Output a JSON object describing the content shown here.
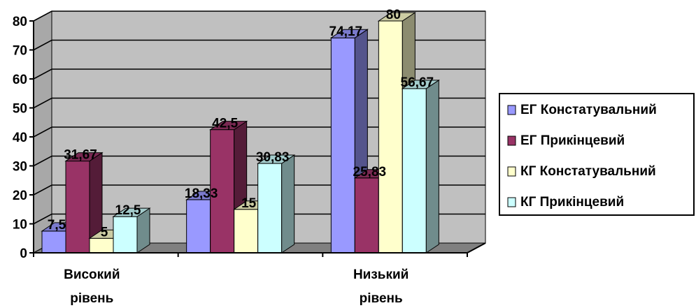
{
  "chart_data": {
    "type": "bar",
    "categories": [
      "Високий рівень",
      "",
      "Низький рівень"
    ],
    "category_lines": [
      [
        "Високий",
        "рівень"
      ],
      [],
      [
        "Низький",
        "рівень"
      ]
    ],
    "series": [
      {
        "name": "ЕГ Констатувальний",
        "values": [
          7.5,
          18.33,
          74.17
        ],
        "labels": [
          "7,5",
          "18,33",
          "74,17"
        ],
        "color": "#9999ff"
      },
      {
        "name": "ЕГ Прикінцевий",
        "values": [
          31.67,
          42.5,
          25.83
        ],
        "labels": [
          "31,67",
          "42,5",
          "25,83"
        ],
        "color": "#993366"
      },
      {
        "name": "КГ Констатувальний",
        "values": [
          5,
          15,
          80
        ],
        "labels": [
          "5",
          "15",
          "80"
        ],
        "color": "#ffffcc"
      },
      {
        "name": "КГ Прикінцевий",
        "values": [
          12.5,
          30.83,
          56.67
        ],
        "labels": [
          "12,5",
          "30,83",
          "56,67"
        ],
        "color": "#ccffff"
      }
    ],
    "yticks": [
      0,
      10,
      20,
      30,
      40,
      50,
      60,
      70,
      80
    ],
    "ylim": [
      0,
      80
    ],
    "grid": true,
    "view": "3d",
    "legend_position": "right",
    "wall_color": "#c0c0c0",
    "floor_color": "#808080"
  }
}
